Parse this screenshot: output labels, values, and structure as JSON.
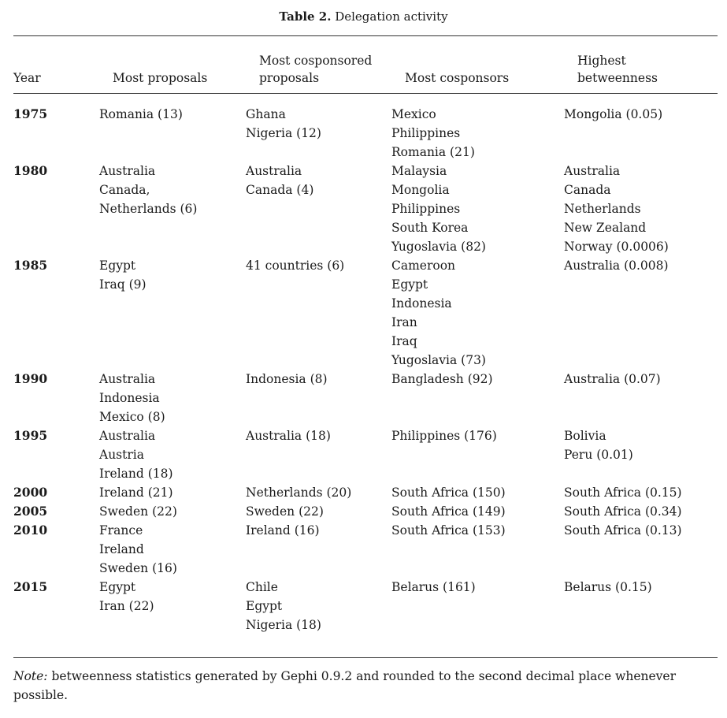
{
  "caption": {
    "label": "Table 2.",
    "title": "Delegation activity"
  },
  "table": {
    "headers": [
      "Year",
      "Most proposals",
      "Most cosponsored\nproposals",
      "Most cosponsors",
      "Highest\nbetweenness"
    ],
    "rows": [
      {
        "year": "1975",
        "proposals": "Romania (13)",
        "cosponsored": "Ghana\nNigeria (12)",
        "cosponsors": "Mexico\nPhilippines\nRomania (21)",
        "betweenness": "Mongolia (0.05)"
      },
      {
        "year": "1980",
        "proposals": "Australia\nCanada,\nNetherlands (6)",
        "cosponsored": "Australia\nCanada (4)",
        "cosponsors": "Malaysia\nMongolia\nPhilippines\nSouth Korea\nYugoslavia (82)",
        "betweenness": "Australia\nCanada\nNetherlands\nNew Zealand\nNorway (0.0006)"
      },
      {
        "year": "1985",
        "proposals": "Egypt\nIraq (9)",
        "cosponsored": "41 countries (6)",
        "cosponsors": "Cameroon\nEgypt\nIndonesia\nIran\nIraq\nYugoslavia (73)",
        "betweenness": "Australia (0.008)"
      },
      {
        "year": "1990",
        "proposals": "Australia\nIndonesia\nMexico (8)",
        "cosponsored": "Indonesia (8)",
        "cosponsors": "Bangladesh (92)",
        "betweenness": "Australia (0.07)"
      },
      {
        "year": "1995",
        "proposals": "Australia\nAustria\nIreland (18)",
        "cosponsored": "Australia (18)",
        "cosponsors": "Philippines (176)",
        "betweenness": "Bolivia\nPeru (0.01)"
      },
      {
        "year": "2000",
        "proposals": "Ireland (21)",
        "cosponsored": "Netherlands (20)",
        "cosponsors": "South Africa (150)",
        "betweenness": "South Africa (0.15)"
      },
      {
        "year": "2005",
        "proposals": "Sweden (22)",
        "cosponsored": "Sweden (22)",
        "cosponsors": "South Africa (149)",
        "betweenness": "South Africa (0.34)"
      },
      {
        "year": "2010",
        "proposals": "France\nIreland\nSweden (16)",
        "cosponsored": "Ireland (16)",
        "cosponsors": "South Africa (153)",
        "betweenness": "South Africa (0.13)"
      },
      {
        "year": "2015",
        "proposals": "Egypt\nIran (22)",
        "cosponsored": "Chile\nEgypt\nNigeria (18)",
        "cosponsors": "Belarus (161)",
        "betweenness": "Belarus (0.15)"
      }
    ]
  },
  "note": {
    "label": "Note:",
    "text": " betweenness statistics generated by Gephi 0.9.2 and rounded to the second decimal place whenever possible."
  }
}
